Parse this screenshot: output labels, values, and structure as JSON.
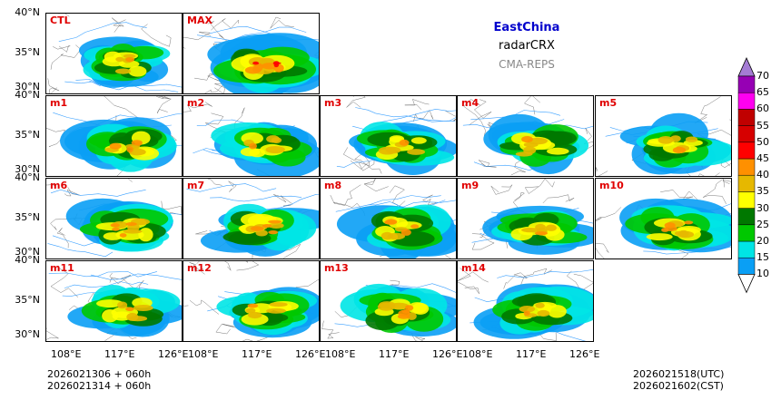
{
  "header": {
    "region": "EastChina",
    "variable": "radarCRX",
    "model": "CMA-REPS"
  },
  "panels": [
    {
      "label": "CTL",
      "intensity": 0.25
    },
    {
      "label": "MAX",
      "intensity": 1.0
    },
    {
      "label": "m1",
      "intensity": 0.55
    },
    {
      "label": "m2",
      "intensity": 0.5
    },
    {
      "label": "m3",
      "intensity": 0.5
    },
    {
      "label": "m4",
      "intensity": 0.5
    },
    {
      "label": "m5",
      "intensity": 0.45
    },
    {
      "label": "m6",
      "intensity": 0.55
    },
    {
      "label": "m7",
      "intensity": 0.55
    },
    {
      "label": "m8",
      "intensity": 0.55
    },
    {
      "label": "m9",
      "intensity": 0.5
    },
    {
      "label": "m10",
      "intensity": 0.6
    },
    {
      "label": "m11",
      "intensity": 0.45
    },
    {
      "label": "m12",
      "intensity": 0.5
    },
    {
      "label": "m13",
      "intensity": 0.55
    },
    {
      "label": "m14",
      "intensity": 0.5
    }
  ],
  "axes": {
    "lat_ticks": [
      "40°N",
      "35°N",
      "30°N"
    ],
    "lon_ticks": [
      "108°E",
      "117°E",
      "126°E"
    ]
  },
  "colorbar": {
    "levels": [
      "10",
      "15",
      "20",
      "25",
      "30",
      "35",
      "40",
      "45",
      "50",
      "55",
      "60",
      "65",
      "70"
    ],
    "colors": [
      "#0a9ff5",
      "#00e5e5",
      "#00c800",
      "#007800",
      "#ffff00",
      "#e6b800",
      "#ff9000",
      "#ff0000",
      "#d60000",
      "#c00000",
      "#ff00f0",
      "#9600b4",
      "#a47cd4"
    ]
  },
  "footer": {
    "init_line1": "2026021306  +  060h",
    "init_line2": "2026021314  +  060h",
    "valid_utc": "2026021518(UTC)",
    "valid_cst": "2026021602(CST)"
  }
}
